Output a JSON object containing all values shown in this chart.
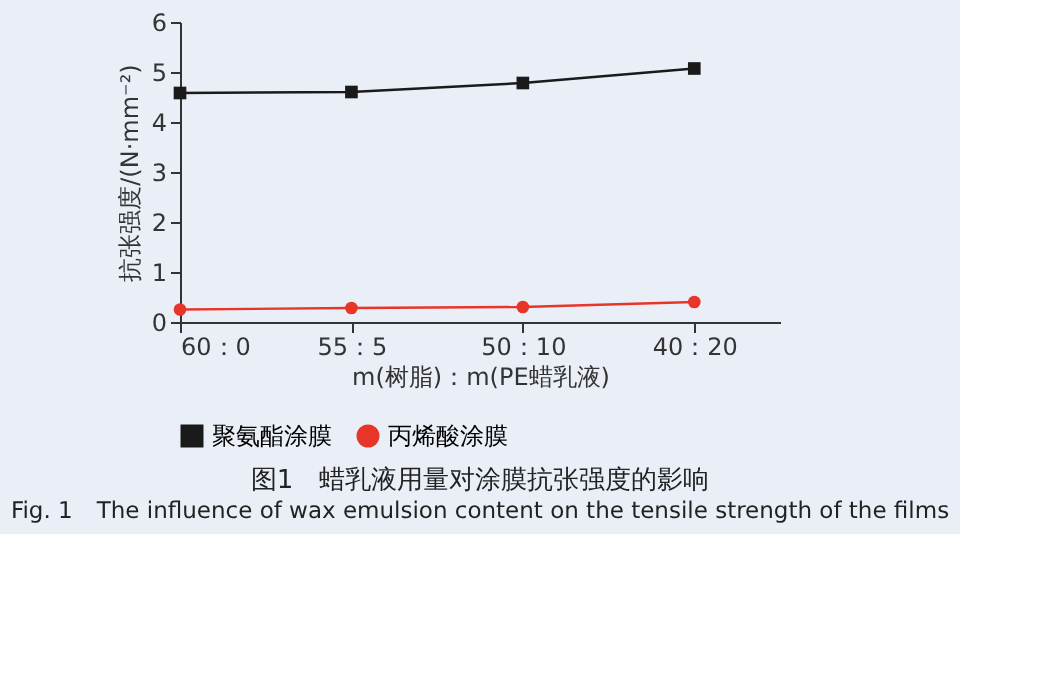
{
  "chart_data": {
    "type": "line",
    "title": "图1　蜡乳液用量对涂膜抗张强度的影响",
    "subtitle": "Fig. 1　The influence of wax emulsion content on the tensile strength of the films",
    "xlabel": "m(树脂)：m(PE蜡乳液)",
    "ylabel": "抗张强度/(N·mm⁻²)",
    "categories": [
      "60：0",
      "55：5",
      "50：10",
      "40：20"
    ],
    "series": [
      {
        "name": "聚氨酯涂膜",
        "color": "#1a1a1a",
        "marker": "square",
        "values": [
          4.58,
          4.6,
          4.78,
          5.07
        ]
      },
      {
        "name": "丙烯酸涂膜",
        "color": "#e8352a",
        "marker": "circle",
        "values": [
          0.25,
          0.28,
          0.3,
          0.4
        ]
      }
    ],
    "ylim": [
      0,
      6
    ],
    "yticks": [
      0,
      1,
      2,
      3,
      4,
      5,
      6
    ],
    "grid": false,
    "legend": "bottom",
    "line_style": "solid"
  }
}
